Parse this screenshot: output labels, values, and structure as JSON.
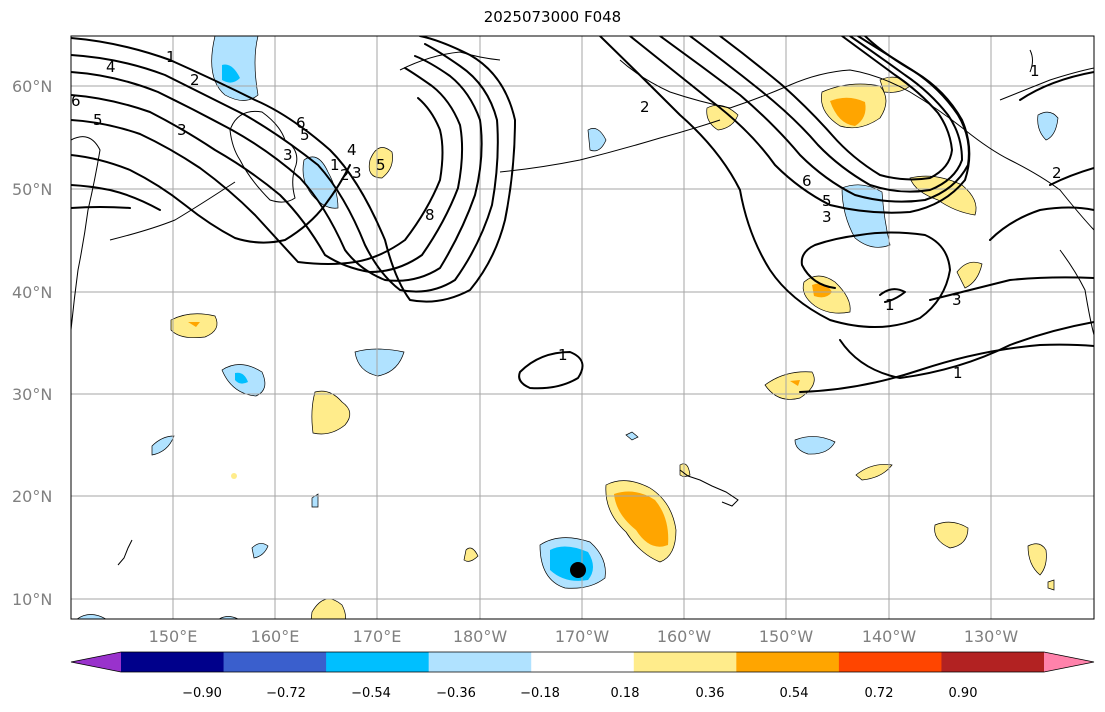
{
  "map": {
    "title": "2025073000 F048",
    "lat_labels": [
      "60°N",
      "50°N",
      "40°N",
      "30°N",
      "20°N",
      "10°N"
    ],
    "lon_labels": [
      "150°E",
      "160°E",
      "170°E",
      "180°W",
      "170°W",
      "160°W",
      "150°W",
      "140°W",
      "130°W"
    ],
    "contour_labels": [
      "1",
      "2",
      "3",
      "4",
      "5",
      "6",
      "8",
      "1",
      "2",
      "3",
      "4",
      "5",
      "6",
      "1",
      "2",
      "3",
      "1",
      "1",
      "3",
      "5",
      "6",
      "2",
      "1",
      "3",
      "5"
    ],
    "colors": {
      "grid": "#a6a6a6",
      "label_gray": "#808080"
    }
  },
  "colorbar": {
    "labels": [
      "−0.90",
      "−0.72",
      "−0.54",
      "−0.36",
      "−0.18",
      "0.18",
      "0.36",
      "0.54",
      "0.72",
      "0.90"
    ],
    "colors": [
      "#9932cc",
      "#00008b",
      "#3a5fcd",
      "#00bfff",
      "#b0e2ff",
      "#ffffff",
      "#ffec8b",
      "#ffa500",
      "#ff4500",
      "#b22222",
      "#ff82ab"
    ]
  }
}
